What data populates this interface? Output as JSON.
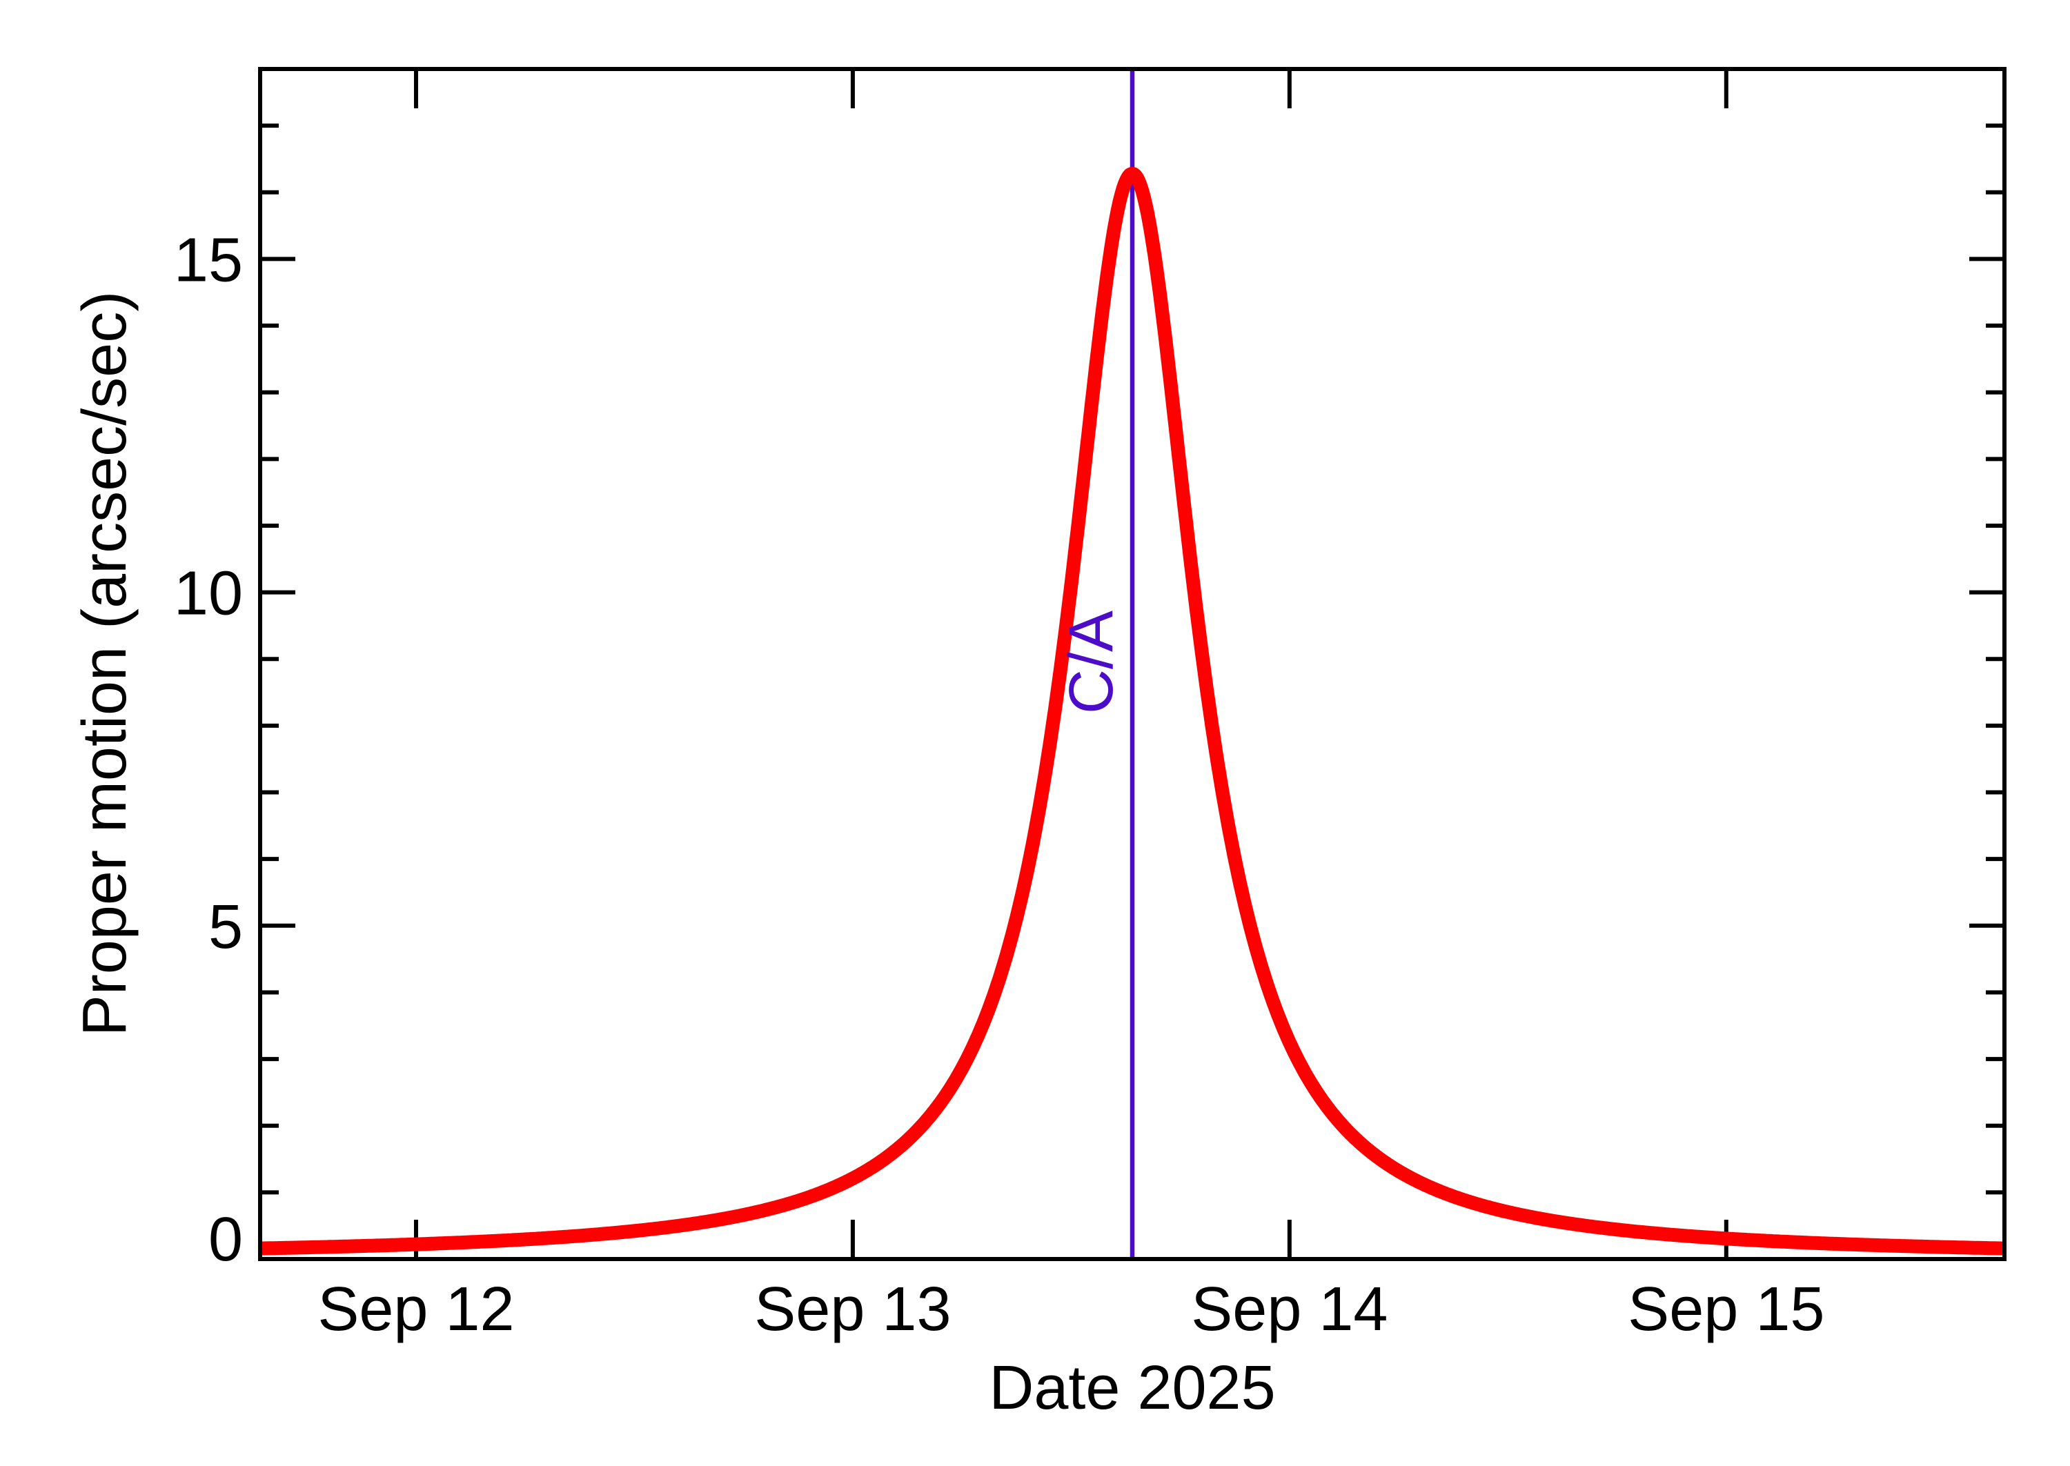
{
  "chart_data": {
    "type": "line",
    "title": "",
    "xlabel": "Date 2025",
    "ylabel": "Proper motion (arcsec/sec)",
    "background": "#ffffff",
    "frame_color": "#000000",
    "grid": "off",
    "legend": "none",
    "x_axis": {
      "kind": "date-september-2025",
      "domain_days": [
        11.643,
        15.637
      ],
      "major_ticks_days": [
        12,
        13,
        14,
        15
      ],
      "major_tick_labels": [
        "Sep 12",
        "Sep 13",
        "Sep 14",
        "Sep 15"
      ],
      "minor_ticks": "none"
    },
    "y_axis": {
      "ylim": [
        0,
        17.85
      ],
      "major_ticks": [
        0,
        5,
        10,
        15
      ],
      "major_tick_labels": [
        "0",
        "5",
        "10",
        "15"
      ],
      "minor_tick_step": 1
    },
    "series": [
      {
        "name": "proper-motion",
        "color": "#ff0000",
        "stroke_width": 20,
        "model": {
          "type": "lorentzian",
          "peak_value": 16.25,
          "center_day_september": 13.64,
          "hwhm_days": 0.179,
          "baseline": 0.03
        },
        "sampled_points_day_value": [
          [
            11.64,
            0.16
          ],
          [
            12.0,
            0.22
          ],
          [
            12.25,
            0.3
          ],
          [
            12.5,
            0.42
          ],
          [
            12.75,
            0.66
          ],
          [
            13.0,
            1.21
          ],
          [
            13.2,
            2.35
          ],
          [
            13.3,
            3.57
          ],
          [
            13.4,
            5.87
          ],
          [
            13.45,
            7.71
          ],
          [
            13.5,
            10.16
          ],
          [
            13.55,
            13.06
          ],
          [
            13.6,
            15.58
          ],
          [
            13.64,
            16.28
          ],
          [
            13.68,
            15.58
          ],
          [
            13.73,
            13.06
          ],
          [
            13.78,
            10.16
          ],
          [
            13.83,
            7.71
          ],
          [
            13.88,
            5.87
          ],
          [
            14.0,
            3.27
          ],
          [
            14.2,
            1.54
          ],
          [
            14.5,
            0.71
          ],
          [
            14.75,
            0.44
          ],
          [
            15.0,
            0.31
          ],
          [
            15.25,
            0.23
          ],
          [
            15.64,
            0.16
          ]
        ]
      }
    ],
    "annotation": {
      "label": "C/A",
      "day_september": 13.64,
      "line_color": "#4b0dc8",
      "label_color": "#4b0dc8"
    }
  }
}
